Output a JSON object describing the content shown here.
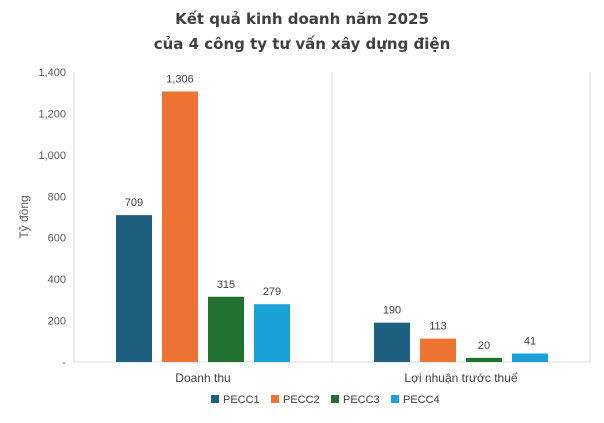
{
  "chart_data": {
    "type": "bar",
    "title": "Kết quả kinh doanh năm 2025",
    "subtitle": "của 4 công ty tư vấn xây dựng điện",
    "ylabel": "Tỷ đồng",
    "xlabel": "",
    "ylim": [
      0,
      1400
    ],
    "ytick_labels": [
      "-",
      "200",
      "400",
      "600",
      "800",
      "1,000",
      "1,200",
      "1,400"
    ],
    "categories": [
      "Doanh thu",
      "Lợi nhuận trước thuế"
    ],
    "series": [
      {
        "name": "PECC1",
        "values": [
          709,
          190
        ],
        "labels": [
          "709",
          "190"
        ],
        "color": "#1f5f7f"
      },
      {
        "name": "PECC2",
        "values": [
          1306,
          113
        ],
        "labels": [
          "1,306",
          "113"
        ],
        "color": "#ed7432"
      },
      {
        "name": "PECC3",
        "values": [
          315,
          20
        ],
        "labels": [
          "315",
          "20"
        ],
        "color": "#217230"
      },
      {
        "name": "PECC4",
        "values": [
          279,
          41
        ],
        "labels": [
          "279",
          "41"
        ],
        "color": "#1aa2d8"
      }
    ],
    "grid": {
      "horizontal": false,
      "vertical_category_separators": true
    },
    "legend_position": "bottom"
  }
}
